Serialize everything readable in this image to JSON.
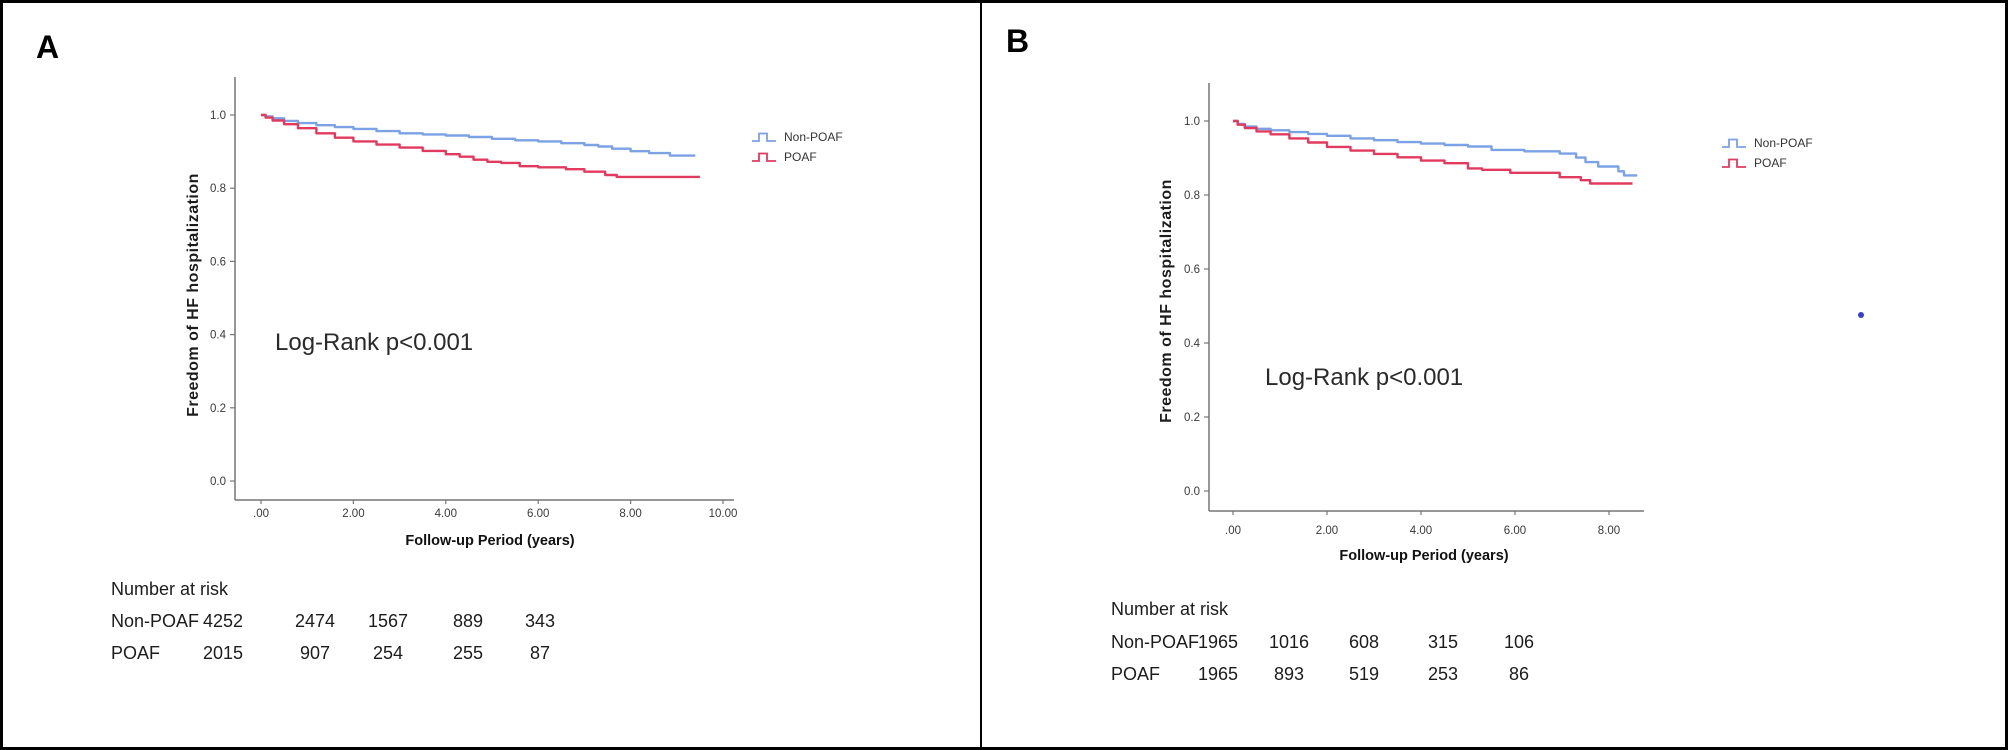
{
  "colors": {
    "non_poaf_line": "#7AA2E4",
    "poaf_line": "#E23A5E",
    "stray_point": "#3B3FD1",
    "axis": "#777777",
    "border": "#000000"
  },
  "chart_data": [
    {
      "type": "line",
      "panel_label": "A",
      "ylabel": "Freedom of HF hospitalization",
      "xlabel": "Follow-up Period (years)",
      "annotation": "Log-Rank p<0.001",
      "xlim": [
        -0.6,
        10.3
      ],
      "ylim": [
        -0.05,
        1.1
      ],
      "x_tick_values": [
        0,
        2,
        4,
        6,
        8,
        10
      ],
      "x_tick_labels": [
        ".00",
        "2.00",
        "4.00",
        "6.00",
        "8.00",
        "10.00"
      ],
      "y_tick_values": [
        0,
        0.2,
        0.4,
        0.6,
        0.8,
        1
      ],
      "y_tick_labels": [
        "0.0",
        "0.2",
        "0.4",
        "0.6",
        "0.8",
        "1.0"
      ],
      "grid": false,
      "legend_position": "right-of-plot",
      "series": [
        {
          "name": "Non-POAF",
          "color": "#7AA2E4",
          "step": true,
          "points": [
            [
              0,
              1.0
            ],
            [
              0.1,
              0.996
            ],
            [
              0.25,
              0.991
            ],
            [
              0.5,
              0.984
            ],
            [
              0.8,
              0.978
            ],
            [
              1.2,
              0.972
            ],
            [
              1.6,
              0.967
            ],
            [
              2.0,
              0.962
            ],
            [
              2.5,
              0.956
            ],
            [
              3.0,
              0.95
            ],
            [
              3.5,
              0.947
            ],
            [
              4.0,
              0.944
            ],
            [
              4.5,
              0.94
            ],
            [
              5.0,
              0.935
            ],
            [
              5.5,
              0.931
            ],
            [
              6.0,
              0.928
            ],
            [
              6.5,
              0.923
            ],
            [
              7.0,
              0.918
            ],
            [
              7.3,
              0.914
            ],
            [
              7.6,
              0.908
            ],
            [
              8.0,
              0.901
            ],
            [
              8.4,
              0.896
            ],
            [
              8.85,
              0.889
            ],
            [
              9.4,
              0.889
            ]
          ]
        },
        {
          "name": "POAF",
          "color": "#E23A5E",
          "step": true,
          "points": [
            [
              0,
              1.0
            ],
            [
              0.1,
              0.993
            ],
            [
              0.25,
              0.985
            ],
            [
              0.5,
              0.975
            ],
            [
              0.8,
              0.964
            ],
            [
              1.2,
              0.95
            ],
            [
              1.6,
              0.938
            ],
            [
              2.0,
              0.928
            ],
            [
              2.5,
              0.919
            ],
            [
              3.0,
              0.911
            ],
            [
              3.5,
              0.902
            ],
            [
              4.0,
              0.893
            ],
            [
              4.3,
              0.886
            ],
            [
              4.6,
              0.878
            ],
            [
              4.9,
              0.872
            ],
            [
              5.2,
              0.869
            ],
            [
              5.6,
              0.86
            ],
            [
              6.0,
              0.857
            ],
            [
              6.6,
              0.852
            ],
            [
              7.0,
              0.845
            ],
            [
              7.45,
              0.836
            ],
            [
              7.7,
              0.831
            ],
            [
              9.5,
              0.831
            ]
          ]
        }
      ],
      "risk_table": {
        "title": "Number at risk",
        "rows": [
          {
            "label": "Non-POAF",
            "values": [
              "4252",
              "2474",
              "1567",
              "889",
              "343"
            ]
          },
          {
            "label": "POAF",
            "values": [
              "2015",
              "907",
              "254",
              "255",
              "87"
            ]
          }
        ]
      }
    },
    {
      "type": "line",
      "panel_label": "B",
      "ylabel": "Freedom of HF hospitalization",
      "xlabel": "Follow-up Period (years)",
      "annotation": "Log-Rank p<0.001",
      "xlim": [
        -0.6,
        8.9
      ],
      "ylim": [
        -0.05,
        1.1
      ],
      "x_tick_values": [
        0,
        2,
        4,
        6,
        8
      ],
      "x_tick_labels": [
        ".00",
        "2.00",
        "4.00",
        "6.00",
        "8.00"
      ],
      "y_tick_values": [
        0,
        0.2,
        0.4,
        0.6,
        0.8,
        1
      ],
      "y_tick_labels": [
        "0.0",
        "0.2",
        "0.4",
        "0.6",
        "0.8",
        "1.0"
      ],
      "grid": false,
      "legend_position": "right-of-plot",
      "stray_point": {
        "color": "#3B3FD1"
      },
      "series": [
        {
          "name": "Non-POAF",
          "color": "#7AA2E4",
          "step": true,
          "points": [
            [
              0,
              1.0
            ],
            [
              0.1,
              0.992
            ],
            [
              0.25,
              0.985
            ],
            [
              0.5,
              0.979
            ],
            [
              0.8,
              0.975
            ],
            [
              1.2,
              0.97
            ],
            [
              1.6,
              0.965
            ],
            [
              2.0,
              0.96
            ],
            [
              2.5,
              0.953
            ],
            [
              3.0,
              0.948
            ],
            [
              3.5,
              0.943
            ],
            [
              4.0,
              0.939
            ],
            [
              4.5,
              0.935
            ],
            [
              5.0,
              0.931
            ],
            [
              5.5,
              0.922
            ],
            [
              6.2,
              0.918
            ],
            [
              6.95,
              0.912
            ],
            [
              7.3,
              0.901
            ],
            [
              7.5,
              0.889
            ],
            [
              7.77,
              0.877
            ],
            [
              8.2,
              0.864
            ],
            [
              8.32,
              0.853
            ],
            [
              8.6,
              0.853
            ]
          ]
        },
        {
          "name": "POAF",
          "color": "#E23A5E",
          "step": true,
          "points": [
            [
              0,
              1.0
            ],
            [
              0.1,
              0.99
            ],
            [
              0.25,
              0.981
            ],
            [
              0.5,
              0.972
            ],
            [
              0.8,
              0.964
            ],
            [
              1.2,
              0.953
            ],
            [
              1.6,
              0.942
            ],
            [
              2.0,
              0.93
            ],
            [
              2.5,
              0.92
            ],
            [
              3.0,
              0.911
            ],
            [
              3.5,
              0.902
            ],
            [
              4.0,
              0.893
            ],
            [
              4.5,
              0.886
            ],
            [
              5.0,
              0.872
            ],
            [
              5.3,
              0.868
            ],
            [
              5.9,
              0.86
            ],
            [
              6.95,
              0.848
            ],
            [
              7.4,
              0.84
            ],
            [
              7.6,
              0.831
            ],
            [
              8.5,
              0.831
            ]
          ]
        }
      ],
      "risk_table": {
        "title": "Number at risk",
        "rows": [
          {
            "label": "Non-POAF",
            "values": [
              "1965",
              "1016",
              "608",
              "315",
              "106"
            ]
          },
          {
            "label": "POAF",
            "values": [
              "1965",
              "893",
              "519",
              "253",
              "86"
            ]
          }
        ]
      }
    }
  ]
}
